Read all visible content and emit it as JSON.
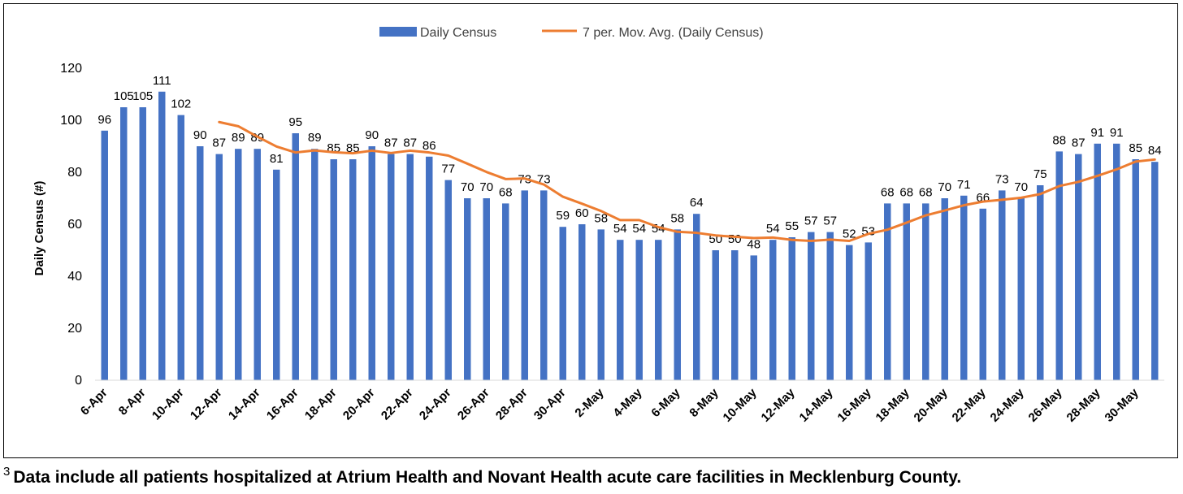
{
  "chart_data": {
    "type": "bar",
    "ylabel": "Daily Census (#)",
    "xlabel": "",
    "ylim": [
      0,
      120
    ],
    "yticks": [
      0,
      20,
      40,
      60,
      80,
      100,
      120
    ],
    "legend_position": "top-center",
    "grid": false,
    "colors": {
      "bar": "#4472c4",
      "line": "#ed7d31"
    },
    "categories": [
      "6-Apr",
      "7-Apr",
      "8-Apr",
      "9-Apr",
      "10-Apr",
      "11-Apr",
      "12-Apr",
      "13-Apr",
      "14-Apr",
      "15-Apr",
      "16-Apr",
      "17-Apr",
      "18-Apr",
      "19-Apr",
      "20-Apr",
      "21-Apr",
      "22-Apr",
      "23-Apr",
      "24-Apr",
      "25-Apr",
      "26-Apr",
      "27-Apr",
      "28-Apr",
      "29-Apr",
      "30-Apr",
      "1-May",
      "2-May",
      "3-May",
      "4-May",
      "5-May",
      "6-May",
      "7-May",
      "8-May",
      "9-May",
      "10-May",
      "11-May",
      "12-May",
      "13-May",
      "14-May",
      "15-May",
      "16-May",
      "17-May",
      "18-May",
      "19-May",
      "20-May",
      "21-May",
      "22-May",
      "23-May",
      "24-May",
      "25-May",
      "26-May",
      "27-May",
      "28-May",
      "29-May",
      "30-May",
      "31-May"
    ],
    "tick_labels_shown": [
      "6-Apr",
      "8-Apr",
      "10-Apr",
      "12-Apr",
      "14-Apr",
      "16-Apr",
      "18-Apr",
      "20-Apr",
      "22-Apr",
      "24-Apr",
      "26-Apr",
      "28-Apr",
      "30-Apr",
      "2-May",
      "4-May",
      "6-May",
      "8-May",
      "10-May",
      "12-May",
      "14-May",
      "16-May",
      "18-May",
      "20-May",
      "22-May",
      "24-May",
      "26-May",
      "28-May",
      "30-May"
    ],
    "series": [
      {
        "name": "Daily Census",
        "type": "bar",
        "values": [
          96,
          105,
          105,
          111,
          102,
          90,
          87,
          89,
          89,
          81,
          95,
          89,
          85,
          85,
          90,
          87,
          87,
          86,
          77,
          70,
          70,
          68,
          73,
          73,
          59,
          60,
          58,
          54,
          54,
          54,
          58,
          64,
          50,
          50,
          48,
          54,
          55,
          57,
          57,
          52,
          53,
          68,
          68,
          68,
          70,
          71,
          66,
          73,
          70,
          75,
          88,
          87,
          91,
          91,
          85,
          84
        ]
      },
      {
        "name": "7 per. Mov. Avg. (Daily Census)",
        "type": "line",
        "values": [
          null,
          null,
          null,
          null,
          null,
          null,
          99.3,
          97.7,
          93.7,
          89.9,
          87.6,
          88.4,
          87.7,
          87.3,
          88.3,
          87.4,
          88.3,
          87.6,
          86.4,
          83.3,
          80.1,
          77.4,
          77.6,
          75.3,
          70.6,
          67.9,
          65.1,
          61.6,
          61.6,
          58.9,
          57.1,
          56.7,
          55.7,
          55.2,
          54.7,
          54.9,
          54.0,
          53.6,
          54.1,
          53.6,
          56.3,
          57.9,
          60.6,
          63.4,
          65.3,
          67.3,
          68.7,
          69.4,
          70.2,
          71.6,
          74.7,
          76.3,
          78.6,
          81.1,
          84.1,
          84.9
        ]
      }
    ]
  },
  "footnote": {
    "marker": "3",
    "text": "Data include all patients hospitalized at Atrium Health and Novant Health acute care facilities in Mecklenburg County."
  }
}
